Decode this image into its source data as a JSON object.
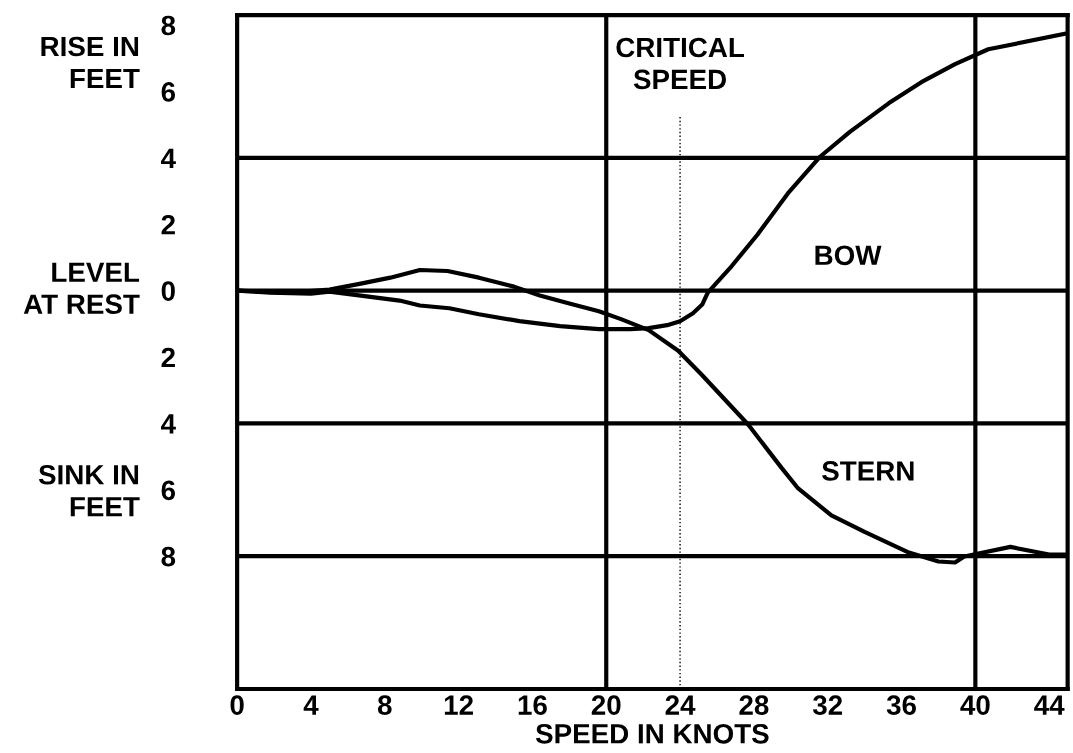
{
  "chart_data": {
    "type": "line",
    "xlabel": "SPEED IN KNOTS",
    "xlim": [
      0,
      45
    ],
    "xticks": [
      0,
      4,
      8,
      12,
      16,
      20,
      24,
      28,
      32,
      36,
      40,
      44
    ],
    "ylim": [
      -12,
      8.3
    ],
    "yticks": [
      8,
      6,
      4,
      2,
      0,
      {
        "value": -2,
        "label": "2"
      },
      {
        "value": -4,
        "label": "4"
      },
      {
        "value": -6,
        "label": "6"
      },
      {
        "value": -8,
        "label": "8"
      }
    ],
    "grid": false,
    "legend": false,
    "marker": "none",
    "line_style": "solid",
    "series": [
      {
        "name": "BOW",
        "color": "#000000",
        "x": [
          0,
          1.8,
          4.0,
          5.0,
          6.7,
          8.8,
          9.9,
          11.5,
          13.1,
          15.3,
          17.5,
          19.6,
          21.3,
          22.3,
          23.3,
          24.0,
          24.7,
          25.2,
          25.5,
          26.8,
          28.2,
          29.9,
          31.6,
          33.2,
          35.3,
          37.2,
          38.9,
          40.7,
          45.0
        ],
        "values": [
          0,
          -0.06,
          -0.09,
          -0.03,
          -0.15,
          -0.3,
          -0.45,
          -0.53,
          -0.71,
          -0.92,
          -1.07,
          -1.16,
          -1.16,
          -1.13,
          -1.04,
          -0.92,
          -0.68,
          -0.42,
          -0.06,
          0.74,
          1.69,
          2.97,
          4.04,
          4.78,
          5.64,
          6.32,
          6.82,
          7.27,
          7.75
        ]
      },
      {
        "name": "STERN",
        "color": "#000000",
        "x": [
          0,
          1.2,
          2.9,
          5.0,
          6.7,
          8.3,
          9.9,
          11.4,
          13.1,
          15.0,
          16.4,
          18.0,
          19.6,
          20.8,
          22.3,
          23.9,
          25.2,
          27.7,
          29.5,
          30.4,
          32.2,
          34.0,
          36.4,
          38.0,
          38.9,
          39.4,
          41.9,
          44.0,
          45.0
        ],
        "values": [
          0,
          -0.03,
          -0.06,
          0.03,
          0.21,
          0.39,
          0.62,
          0.59,
          0.39,
          0.12,
          -0.15,
          -0.39,
          -0.62,
          -0.86,
          -1.19,
          -1.81,
          -2.55,
          -4.04,
          -5.34,
          -5.96,
          -6.77,
          -7.27,
          -7.89,
          -8.16,
          -8.19,
          -8.01,
          -7.72,
          -7.95,
          -7.95
        ]
      }
    ],
    "ref_lines": [
      {
        "axis": "y",
        "value": 4,
        "line_style": "solid"
      },
      {
        "axis": "y",
        "value": 0,
        "line_style": "solid"
      },
      {
        "axis": "y",
        "value": -4,
        "line_style": "solid"
      },
      {
        "axis": "y",
        "value": -8,
        "line_style": "solid"
      },
      {
        "axis": "x",
        "value": 20,
        "line_style": "solid"
      },
      {
        "axis": "x",
        "value": 40,
        "line_style": "solid"
      },
      {
        "axis": "x",
        "value": 24,
        "line_style": "dotted",
        "label": "CRITICAL\nSPEED"
      }
    ],
    "annotations": [
      "RISE IN\nFEET",
      "LEVEL\nAT REST",
      "SINK IN\nFEET"
    ]
  }
}
